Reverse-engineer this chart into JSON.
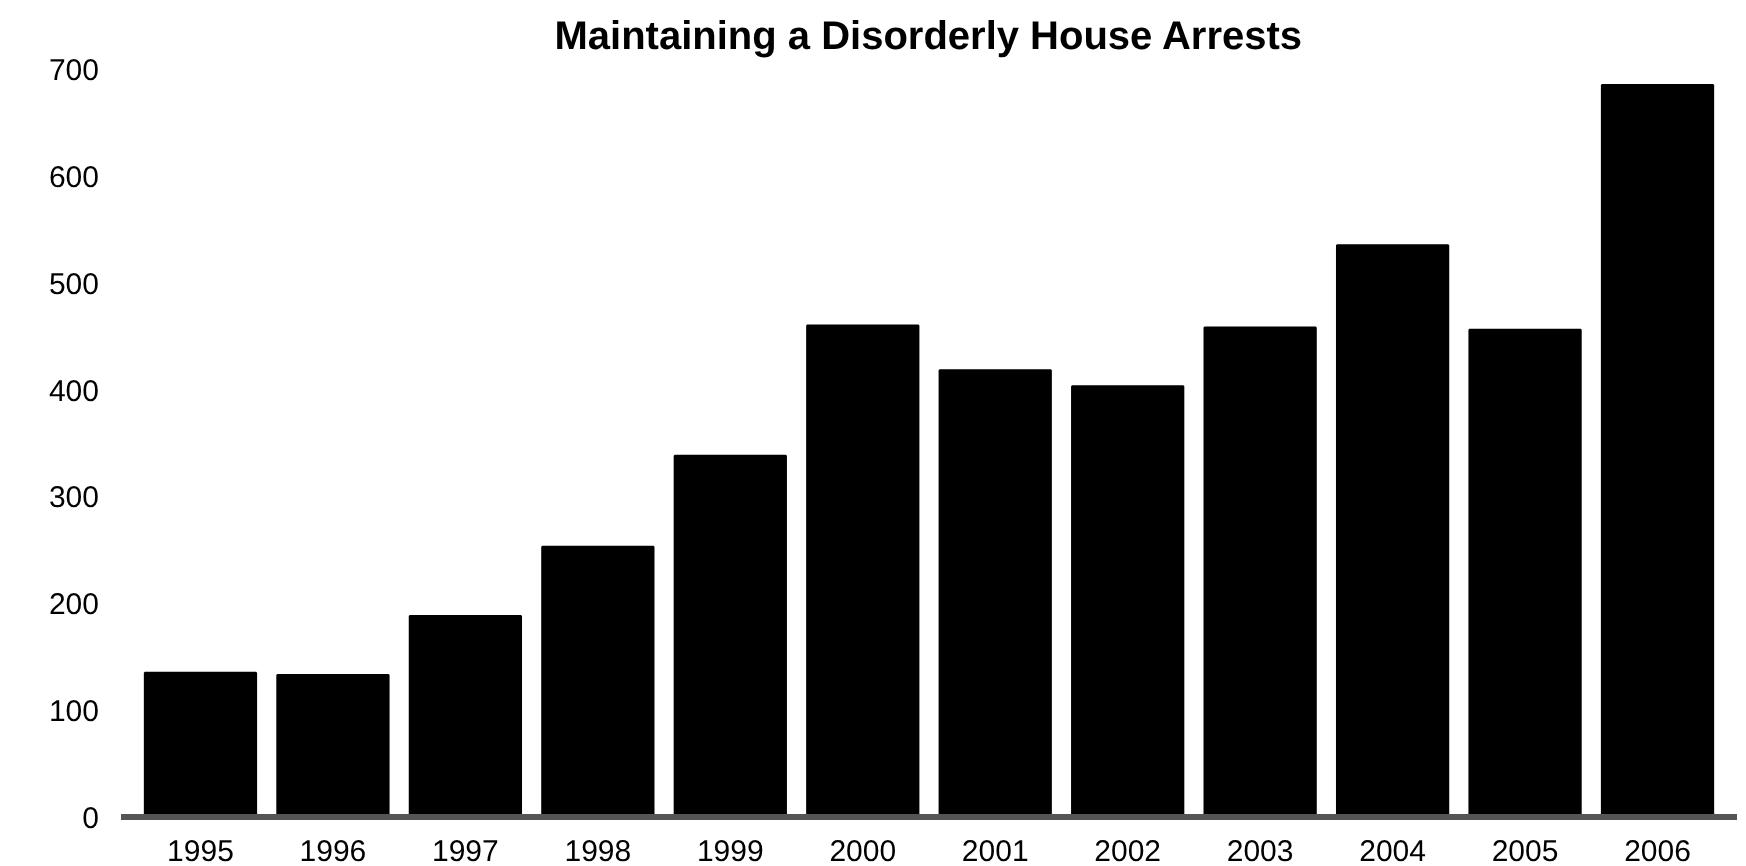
{
  "chart_data": {
    "type": "bar",
    "title": "Maintaining a Disorderly House Arrests",
    "categories": [
      "1995",
      "1996",
      "1997",
      "1998",
      "1999",
      "2000",
      "2001",
      "2002",
      "2003",
      "2004",
      "2005",
      "2006"
    ],
    "values": [
      135,
      133,
      188,
      253,
      338,
      460,
      418,
      403,
      458,
      535,
      456,
      685
    ],
    "color": "#000000",
    "ylim": [
      0,
      700
    ],
    "yticks": [
      0,
      100,
      200,
      300,
      400,
      500,
      600,
      700
    ],
    "grid": false
  }
}
